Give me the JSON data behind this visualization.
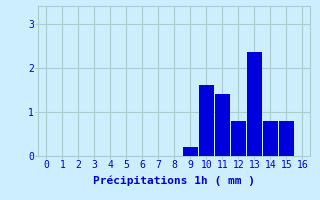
{
  "hours": [
    0,
    1,
    2,
    3,
    4,
    5,
    6,
    7,
    8,
    9,
    10,
    11,
    12,
    13,
    14,
    15,
    16
  ],
  "values": [
    0,
    0,
    0,
    0,
    0,
    0,
    0,
    0,
    0,
    0.2,
    1.6,
    1.4,
    0.8,
    2.35,
    0.8,
    0.8,
    0
  ],
  "bar_color": "#0000dd",
  "background_color": "#cceeff",
  "grid_color": "#aacccc",
  "xlabel": "Précipitations 1h ( mm )",
  "xlabel_fontsize": 8,
  "tick_fontsize": 7,
  "ylim": [
    0,
    3.4
  ],
  "yticks": [
    0,
    1,
    2,
    3
  ],
  "xlim": [
    -0.5,
    16.5
  ],
  "xticks": [
    0,
    1,
    2,
    3,
    4,
    5,
    6,
    7,
    8,
    9,
    10,
    11,
    12,
    13,
    14,
    15,
    16
  ]
}
